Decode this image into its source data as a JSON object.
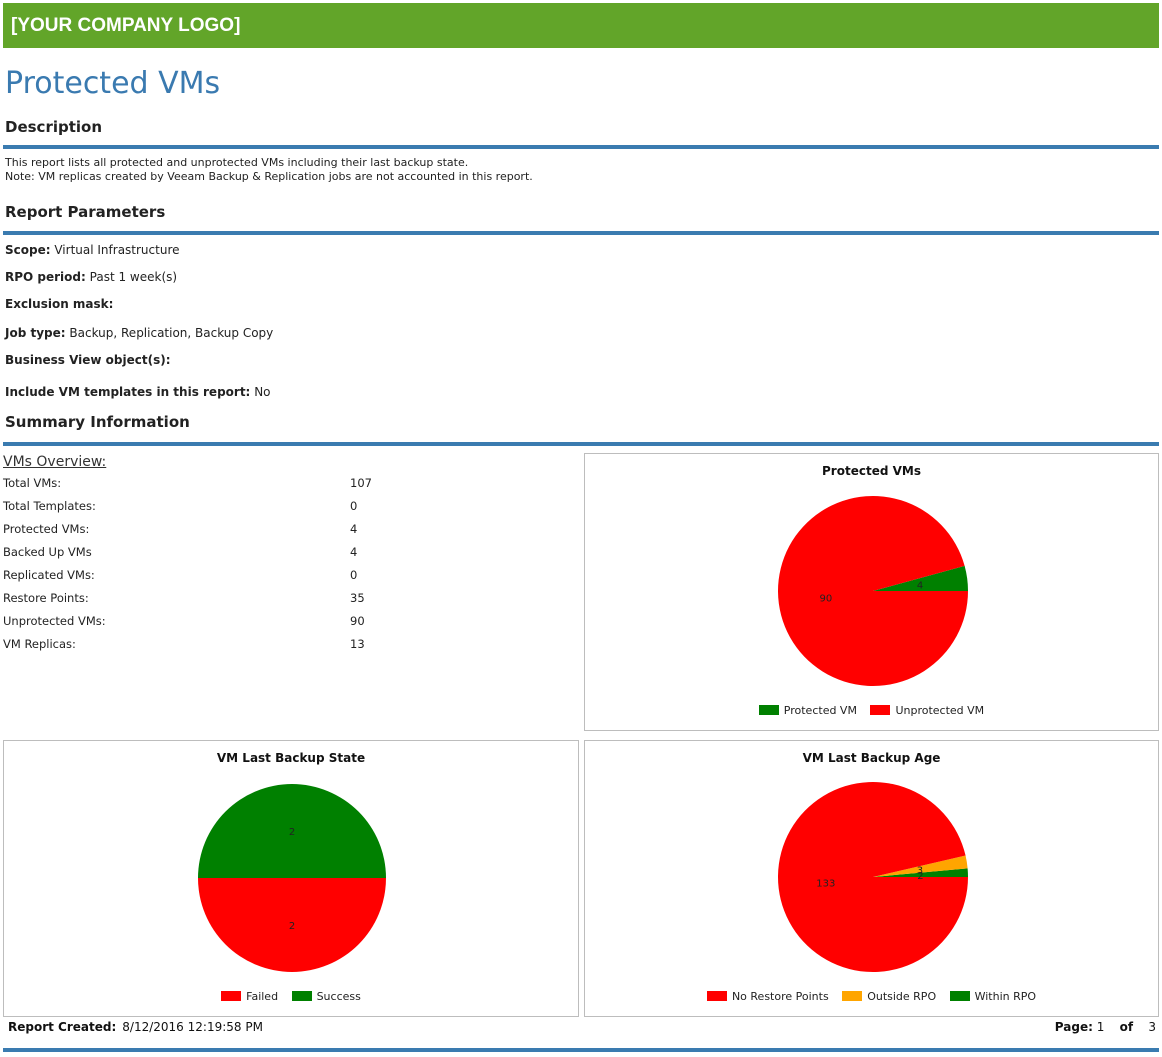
{
  "header": {
    "logo_text": "[YOUR COMPANY LOGO]",
    "color": "#62a529"
  },
  "report": {
    "title": "Protected VMs"
  },
  "sections": {
    "description": "Description",
    "parameters": "Report Parameters",
    "summary": "Summary Information"
  },
  "description": {
    "line1": "This report lists all protected and unprotected VMs including their last backup state.",
    "line2": "Note: VM replicas created by Veeam Backup & Replication jobs are not accounted in this report."
  },
  "parameters": [
    {
      "label": "Scope:",
      "value": "Virtual Infrastructure"
    },
    {
      "label": "RPO period:",
      "value": "Past 1 week(s)"
    },
    {
      "label": "Exclusion mask:",
      "value": ""
    },
    {
      "label": "Job type:",
      "value": "Backup, Replication, Backup Copy"
    },
    {
      "label": "Business View object(s):",
      "value": ""
    },
    {
      "label": "Include VM templates in this report:",
      "value": "No"
    }
  ],
  "overview": {
    "title": "VMs Overview:",
    "rows": [
      {
        "label": "Total VMs:",
        "value": "107"
      },
      {
        "label": "Total Templates:",
        "value": "0"
      },
      {
        "label": "Protected VMs:",
        "value": "4"
      },
      {
        "label": "Backed Up VMs",
        "value": "4"
      },
      {
        "label": "Replicated VMs:",
        "value": "0"
      },
      {
        "label": "Restore Points:",
        "value": "35"
      },
      {
        "label": "Unprotected VMs:",
        "value": "90"
      },
      {
        "label": "VM Replicas:",
        "value": "13"
      }
    ]
  },
  "colors": {
    "green": "#008000",
    "red": "#ff0000",
    "orange": "#ffa500",
    "rule_blue": "#3a7bb0",
    "title_blue": "#3a7ab0"
  },
  "chart_data": [
    {
      "type": "pie",
      "title": "Protected VMs",
      "categories": [
        "Protected VM",
        "Unprotected VM"
      ],
      "values": [
        4,
        90
      ],
      "labels": [
        "4",
        "90"
      ],
      "colors": [
        "#008000",
        "#ff0000"
      ],
      "legend": "bottom"
    },
    {
      "type": "pie",
      "title": "VM Last Backup State",
      "categories": [
        "Failed",
        "Success"
      ],
      "values": [
        2,
        2
      ],
      "labels": [
        "2",
        "2"
      ],
      "colors": [
        "#ff0000",
        "#008000"
      ],
      "legend": "bottom"
    },
    {
      "type": "pie",
      "title": "VM Last Backup Age",
      "categories": [
        "No Restore Points",
        "Outside RPO",
        "Within RPO"
      ],
      "values": [
        133,
        3,
        2
      ],
      "labels": [
        "133",
        "3",
        "2"
      ],
      "colors": [
        "#ff0000",
        "#ffa500",
        "#008000"
      ],
      "legend": "bottom"
    }
  ],
  "footer": {
    "created_label": "Report Created:",
    "created_value": "8/12/2016 12:19:58 PM",
    "page_label": "Page:",
    "page_current": "1",
    "of_label": "of",
    "page_total": "3"
  }
}
